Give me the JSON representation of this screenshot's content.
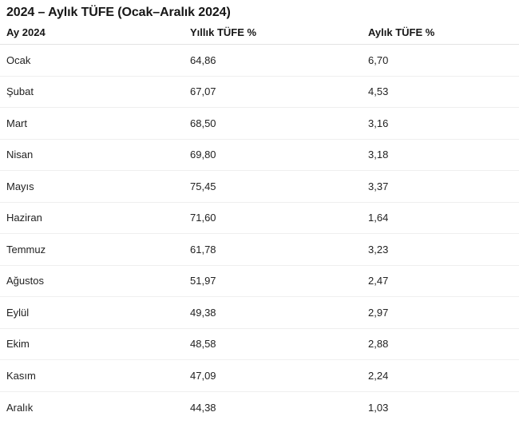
{
  "title": "2024 – Aylık TÜFE (Ocak–Aralık 2024)",
  "table": {
    "columns": [
      "Ay 2024",
      "Yıllık TÜFE %",
      "Aylık TÜFE %"
    ],
    "rows": [
      {
        "month": "Ocak",
        "yearly": "64,86",
        "monthly": "6,70"
      },
      {
        "month": "Şubat",
        "yearly": "67,07",
        "monthly": "4,53"
      },
      {
        "month": "Mart",
        "yearly": "68,50",
        "monthly": "3,16"
      },
      {
        "month": "Nisan",
        "yearly": "69,80",
        "monthly": "3,18"
      },
      {
        "month": "Mayıs",
        "yearly": "75,45",
        "monthly": "3,37"
      },
      {
        "month": "Haziran",
        "yearly": "71,60",
        "monthly": "1,64"
      },
      {
        "month": "Temmuz",
        "yearly": "61,78",
        "monthly": "3,23"
      },
      {
        "month": "Ağustos",
        "yearly": "51,97",
        "monthly": "2,47"
      },
      {
        "month": "Eylül",
        "yearly": "49,38",
        "monthly": "2,97"
      },
      {
        "month": "Ekim",
        "yearly": "48,58",
        "monthly": "2,88"
      },
      {
        "month": "Kasım",
        "yearly": "47,09",
        "monthly": "2,24"
      },
      {
        "month": "Aralık",
        "yearly": "44,38",
        "monthly": "1,03"
      }
    ]
  },
  "chart_data": {
    "type": "table",
    "title": "2024 – Aylık TÜFE (Ocak–Aralık 2024)",
    "columns": [
      "Ay 2024",
      "Yıllık TÜFE %",
      "Aylık TÜFE %"
    ],
    "categories": [
      "Ocak",
      "Şubat",
      "Mart",
      "Nisan",
      "Mayıs",
      "Haziran",
      "Temmuz",
      "Ağustos",
      "Eylül",
      "Ekim",
      "Kasım",
      "Aralık"
    ],
    "series": [
      {
        "name": "Yıllık TÜFE %",
        "values": [
          64.86,
          67.07,
          68.5,
          69.8,
          75.45,
          71.6,
          61.78,
          51.97,
          49.38,
          48.58,
          47.09,
          44.38
        ]
      },
      {
        "name": "Aylık TÜFE %",
        "values": [
          6.7,
          4.53,
          3.16,
          3.18,
          3.37,
          1.64,
          3.23,
          2.47,
          2.97,
          2.88,
          2.24,
          1.03
        ]
      }
    ],
    "decimal_separator": ","
  },
  "colors": {
    "background": "#ffffff",
    "text": "#1f1f1f",
    "title_text": "#161616",
    "header_border": "#e3e3e3",
    "row_border": "#efefef"
  }
}
